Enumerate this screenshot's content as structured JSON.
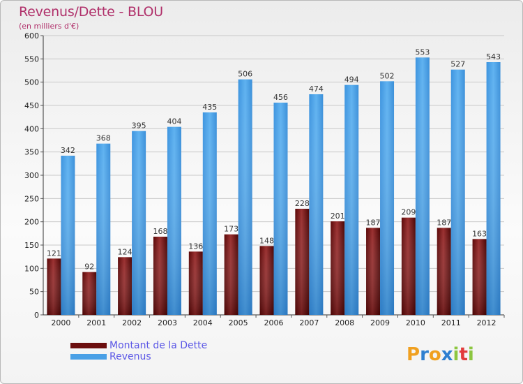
{
  "title": "Revenus/Dette - BLOU",
  "subtitle": "(en milliers d'€)",
  "legend": [
    {
      "label": "Montant de la Dette",
      "color": "#6b0e0e"
    },
    {
      "label": "Revenus",
      "color": "#4aa0e6"
    }
  ],
  "logo": {
    "text": "Proxiti",
    "icon": "proxiti-logo"
  },
  "chart_data": {
    "type": "bar",
    "categories": [
      "2000",
      "2001",
      "2002",
      "2003",
      "2004",
      "2005",
      "2006",
      "2007",
      "2008",
      "2009",
      "2010",
      "2011",
      "2012"
    ],
    "series": [
      {
        "name": "Montant de la Dette",
        "color": "#6b0e0e",
        "values": [
          121,
          92,
          124,
          168,
          136,
          173,
          148,
          228,
          201,
          187,
          209,
          187,
          163
        ]
      },
      {
        "name": "Revenus",
        "color": "#4aa0e6",
        "values": [
          342,
          368,
          395,
          404,
          435,
          506,
          456,
          474,
          494,
          502,
          553,
          527,
          543
        ]
      }
    ],
    "ylim": [
      0,
      600
    ],
    "yticks": [
      0,
      50,
      100,
      150,
      200,
      250,
      300,
      350,
      400,
      450,
      500,
      550,
      600
    ],
    "grid": true
  }
}
